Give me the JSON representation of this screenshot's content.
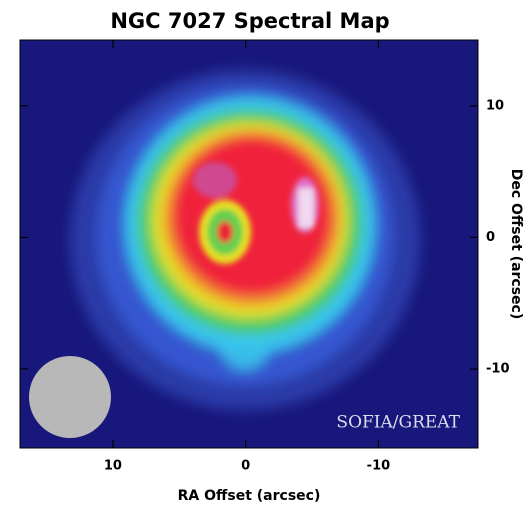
{
  "chart_data": {
    "type": "heatmap",
    "title": "NGC 7027 Spectral Map",
    "xlabel": "RA Offset (arcsec)",
    "ylabel": "Dec Offset (arcsec)",
    "annotation": "SOFIA/GREAT",
    "xlim": [
      17,
      -17.5
    ],
    "ylim": [
      -16,
      15
    ],
    "xticks": [
      10,
      0,
      -10
    ],
    "yticks": [
      10,
      0,
      -10
    ]
  }
}
